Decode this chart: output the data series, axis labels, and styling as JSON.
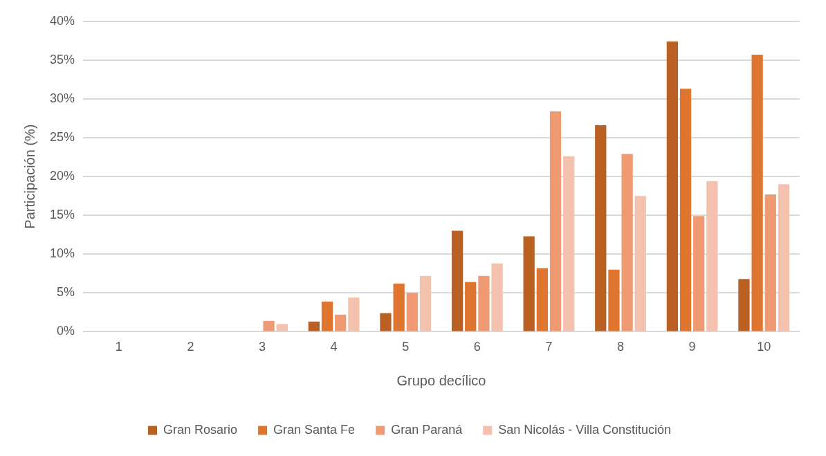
{
  "chart_data": {
    "type": "bar",
    "xlabel": "Grupo decílico",
    "ylabel": "Participación (%)",
    "categories": [
      "1",
      "2",
      "3",
      "4",
      "5",
      "6",
      "7",
      "8",
      "9",
      "10"
    ],
    "series": [
      {
        "name": "Gran Rosario",
        "color": "#ba6023",
        "values": [
          0,
          0,
          0,
          1.3,
          2.4,
          13.0,
          12.3,
          26.6,
          37.4,
          6.8
        ]
      },
      {
        "name": "Gran Santa Fe",
        "color": "#df752f",
        "values": [
          0,
          0,
          0,
          3.9,
          6.2,
          6.4,
          8.2,
          8.0,
          31.3,
          35.7
        ]
      },
      {
        "name": "Gran Paraná",
        "color": "#ef9a72",
        "values": [
          0,
          0,
          1.4,
          2.2,
          5.0,
          7.2,
          28.4,
          22.9,
          14.9,
          17.7
        ]
      },
      {
        "name": "San Nicolás - Villa Constitución",
        "color": "#f4c1ae",
        "values": [
          0,
          0,
          1.0,
          4.4,
          7.2,
          8.8,
          22.6,
          17.5,
          19.4,
          19.0
        ]
      }
    ],
    "ylim": [
      0,
      40
    ],
    "yticks": [
      {
        "value": 0,
        "label": "0%"
      },
      {
        "value": 5,
        "label": "5%"
      },
      {
        "value": 10,
        "label": "10%"
      },
      {
        "value": 15,
        "label": "15%"
      },
      {
        "value": 20,
        "label": "20%"
      },
      {
        "value": 25,
        "label": "25%"
      },
      {
        "value": 30,
        "label": "30%"
      },
      {
        "value": 35,
        "label": "35%"
      },
      {
        "value": 40,
        "label": "40%"
      }
    ],
    "grid": "y",
    "legend": "bottom"
  }
}
